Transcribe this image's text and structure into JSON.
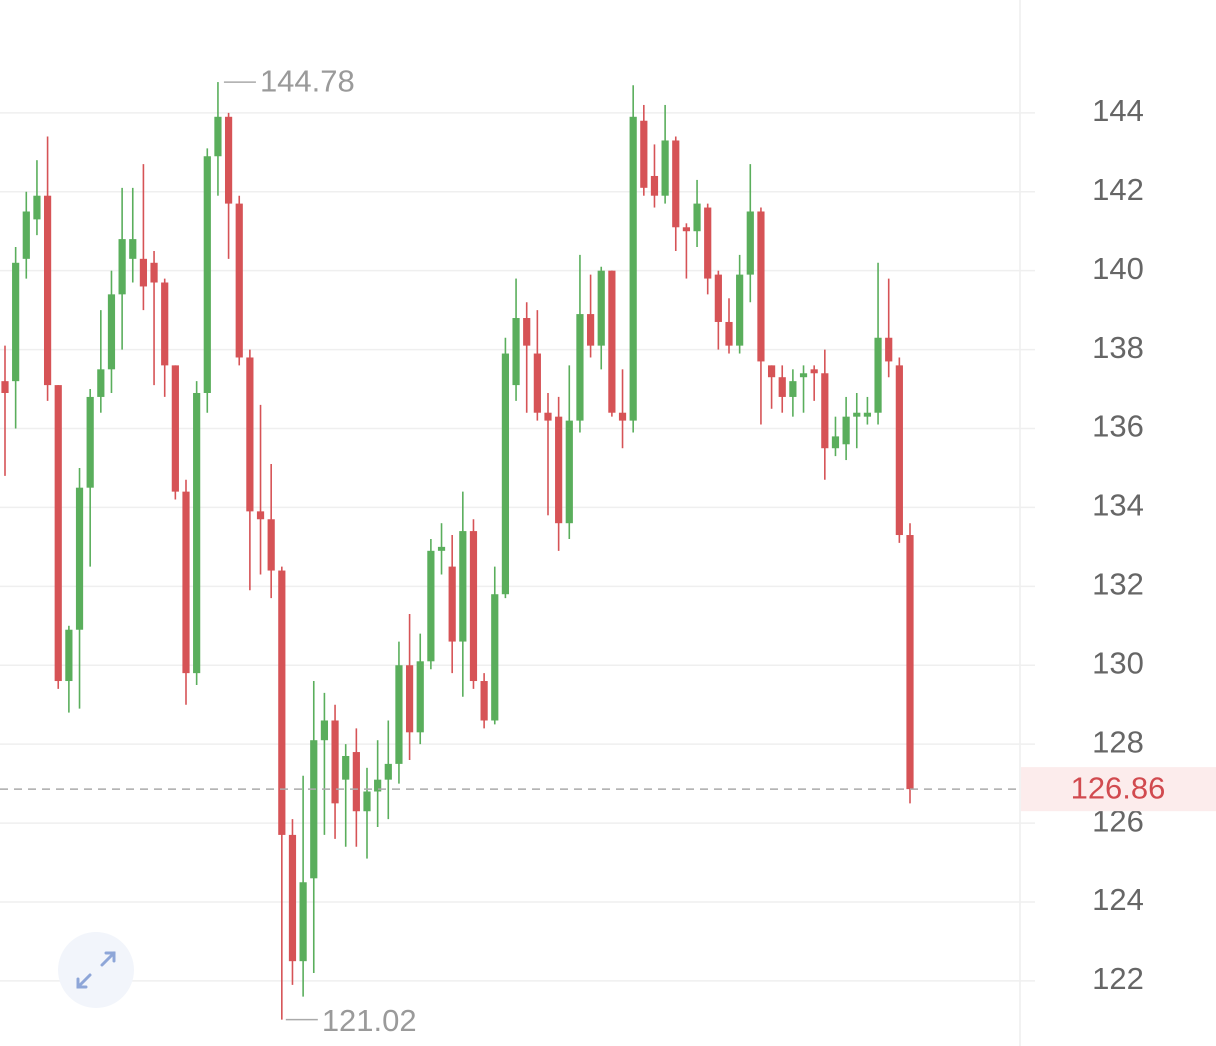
{
  "chart_data": {
    "type": "candlestick",
    "series": [
      {
        "name": "price",
        "up_color": "#5aae5c",
        "down_color": "#d65356",
        "open": [
          137.2,
          137.2,
          140.3,
          141.3,
          141.9,
          137.1,
          129.6,
          130.9,
          134.5,
          136.8,
          137.5,
          139.4,
          140.3,
          140.3,
          140.2,
          139.7,
          137.6,
          134.4,
          129.8,
          136.9,
          142.9,
          143.9,
          141.7,
          137.8,
          133.9,
          133.7,
          132.4,
          125.7,
          122.5,
          124.6,
          128.1,
          128.6,
          127.1,
          127.8,
          126.3,
          126.8,
          127.1,
          127.5,
          130.0,
          128.3,
          130.1,
          132.9,
          132.5,
          130.6,
          133.4,
          129.6,
          128.6,
          131.8,
          137.1,
          138.8,
          137.9,
          136.4,
          136.3,
          133.6,
          136.2,
          138.9,
          138.1,
          140.0,
          136.4,
          136.2,
          143.8,
          142.4,
          141.9,
          143.3,
          141.1,
          141.0,
          141.6,
          139.9,
          138.7,
          138.1,
          139.9,
          141.5,
          137.6,
          137.3,
          136.8,
          137.3,
          137.5,
          137.4,
          135.5,
          135.6,
          136.3,
          136.3,
          136.4,
          138.3,
          137.6,
          133.3
        ],
        "high": [
          138.1,
          140.6,
          142.0,
          142.8,
          143.4,
          137.1,
          131.0,
          135.0,
          137.0,
          139.0,
          140.0,
          142.1,
          142.1,
          142.7,
          140.5,
          139.8,
          137.6,
          134.7,
          137.2,
          143.1,
          144.78,
          144.0,
          141.9,
          138.0,
          136.6,
          135.1,
          132.5,
          126.1,
          127.2,
          129.6,
          129.3,
          129.0,
          128.0,
          128.4,
          127.4,
          128.1,
          128.6,
          130.6,
          131.3,
          130.8,
          133.2,
          133.6,
          133.3,
          134.4,
          133.7,
          129.8,
          132.5,
          138.3,
          139.8,
          139.2,
          139.0,
          136.9,
          136.8,
          137.6,
          140.4,
          139.9,
          140.1,
          140.0,
          137.5,
          144.7,
          144.2,
          143.2,
          144.2,
          143.4,
          141.2,
          142.3,
          141.7,
          140.0,
          139.3,
          140.4,
          142.7,
          141.6,
          137.6,
          137.6,
          137.5,
          137.6,
          137.6,
          138.0,
          136.3,
          136.8,
          136.9,
          136.8,
          140.2,
          139.8,
          137.8,
          133.6
        ],
        "low": [
          134.8,
          136.0,
          139.8,
          140.9,
          136.7,
          129.4,
          128.8,
          128.9,
          132.5,
          136.4,
          136.9,
          138.0,
          139.7,
          139.0,
          137.1,
          136.8,
          134.2,
          129.0,
          129.5,
          136.4,
          141.9,
          140.3,
          137.6,
          131.9,
          132.3,
          131.7,
          121.02,
          121.9,
          121.6,
          122.2,
          125.7,
          125.6,
          125.4,
          125.4,
          125.1,
          125.9,
          126.1,
          127.0,
          127.6,
          128.0,
          129.9,
          132.3,
          129.8,
          129.2,
          129.4,
          128.4,
          128.5,
          131.7,
          136.7,
          136.4,
          136.2,
          133.8,
          132.9,
          133.2,
          135.9,
          137.8,
          137.5,
          136.3,
          135.5,
          135.9,
          141.9,
          141.6,
          141.7,
          140.5,
          139.8,
          140.6,
          139.4,
          138.0,
          137.9,
          137.9,
          139.2,
          136.1,
          136.5,
          136.4,
          136.3,
          136.4,
          136.7,
          134.7,
          135.3,
          135.2,
          135.5,
          136.1,
          136.1,
          137.3,
          133.1,
          126.5
        ],
        "close": [
          136.9,
          140.2,
          141.5,
          141.9,
          137.1,
          129.6,
          130.9,
          134.5,
          136.8,
          137.5,
          139.4,
          140.8,
          140.8,
          139.6,
          139.7,
          137.6,
          134.4,
          129.8,
          136.9,
          142.9,
          143.9,
          141.7,
          137.8,
          133.9,
          133.7,
          132.4,
          125.7,
          122.5,
          124.5,
          128.1,
          128.6,
          126.5,
          127.7,
          126.3,
          126.8,
          127.1,
          127.5,
          130.0,
          128.3,
          130.1,
          132.9,
          133.0,
          130.6,
          133.4,
          129.6,
          128.6,
          131.8,
          137.9,
          138.8,
          138.1,
          136.4,
          136.2,
          133.6,
          136.2,
          138.9,
          138.1,
          140.0,
          136.4,
          136.2,
          143.9,
          142.1,
          141.9,
          143.3,
          141.1,
          141.0,
          141.7,
          139.8,
          138.7,
          138.1,
          139.9,
          141.5,
          137.7,
          137.3,
          136.8,
          137.2,
          137.4,
          137.4,
          135.5,
          135.8,
          136.3,
          136.4,
          136.4,
          138.3,
          137.7,
          133.3,
          126.86
        ]
      }
    ],
    "max_label": 144.78,
    "min_label": 121.02,
    "last_price": 126.86,
    "ylim": [
      120.35,
      146.86
    ],
    "yticks": [
      122,
      124,
      126,
      128,
      130,
      132,
      134,
      136,
      138,
      140,
      142,
      144
    ],
    "grid": true
  }
}
